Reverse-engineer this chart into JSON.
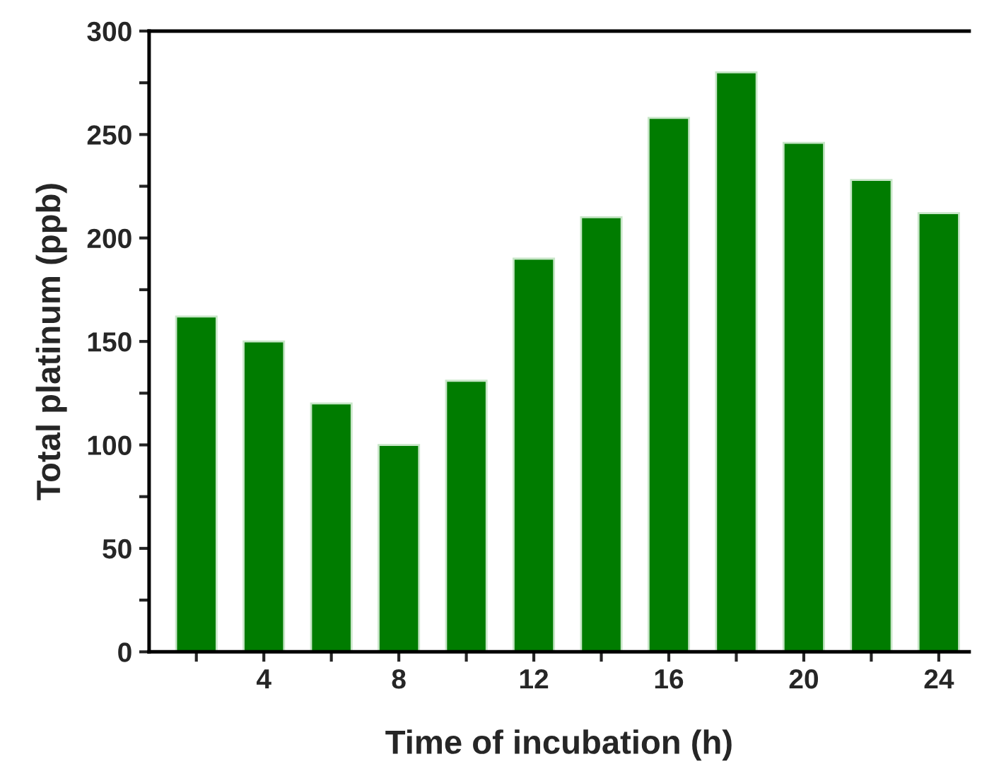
{
  "chart_data": {
    "type": "bar",
    "xlabel": "Time of incubation (h)",
    "ylabel": "Total platinum (ppb)",
    "x": [
      2,
      4,
      6,
      8,
      10,
      12,
      14,
      16,
      18,
      20,
      22,
      24
    ],
    "values": [
      162,
      150,
      120,
      100,
      131,
      190,
      210,
      258,
      280,
      246,
      228,
      212
    ],
    "color": "#007c00",
    "xlim": [
      0.6,
      24.9
    ],
    "xticks": [
      {
        "value": 2,
        "label": null
      },
      4,
      {
        "value": 6,
        "label": null
      },
      8,
      {
        "value": 10,
        "label": null
      },
      12,
      {
        "value": 14,
        "label": null
      },
      16,
      {
        "value": 18,
        "label": null
      },
      20,
      {
        "value": 22,
        "label": null
      },
      24
    ],
    "ylim": [
      0,
      300
    ],
    "yticks": [
      0,
      {
        "value": 25,
        "label": null
      },
      50,
      {
        "value": 75,
        "label": null
      },
      100,
      {
        "value": 125,
        "label": null
      },
      150,
      {
        "value": 175,
        "label": null
      },
      200,
      {
        "value": 225,
        "label": null
      },
      250,
      {
        "value": 275,
        "label": null
      },
      300
    ],
    "grid": false,
    "legend": false
  }
}
